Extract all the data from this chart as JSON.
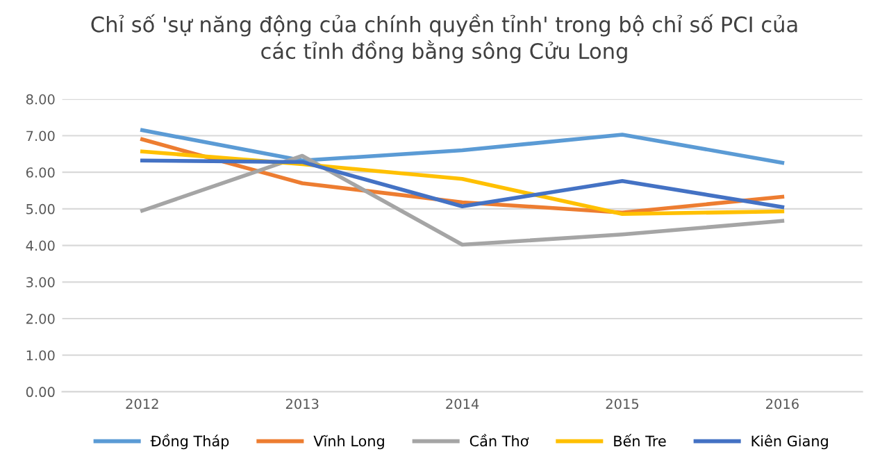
{
  "chart_data": {
    "type": "line",
    "title": "Chỉ số 'sự năng động của chính quyền tỉnh' trong bộ chỉ số PCI của\ncác tỉnh đồng bằng sông Cửu Long",
    "categories": [
      "2012",
      "2013",
      "2014",
      "2015",
      "2016"
    ],
    "series": [
      {
        "name": "Đồng Tháp",
        "color": "#5b9bd5",
        "values": [
          7.15,
          6.32,
          6.6,
          7.03,
          6.26
        ]
      },
      {
        "name": "Vĩnh Long",
        "color": "#ed7d31",
        "values": [
          6.9,
          5.7,
          5.18,
          4.9,
          5.33
        ]
      },
      {
        "name": "Cần Thơ",
        "color": "#a5a5a5",
        "values": [
          4.95,
          6.45,
          4.02,
          4.3,
          4.67
        ]
      },
      {
        "name": "Bến Tre",
        "color": "#ffc000",
        "values": [
          6.57,
          6.22,
          5.82,
          4.86,
          4.93
        ]
      },
      {
        "name": "Kiên Giang",
        "color": "#4472c4",
        "values": [
          6.32,
          6.28,
          5.07,
          5.76,
          5.05
        ]
      }
    ],
    "ylim": [
      0,
      8
    ],
    "yticks": [
      {
        "value": 0,
        "label": "0.00"
      },
      {
        "value": 1,
        "label": "1.00"
      },
      {
        "value": 2,
        "label": "2.00"
      },
      {
        "value": 3,
        "label": "3.00"
      },
      {
        "value": 4,
        "label": "4.00"
      },
      {
        "value": 5,
        "label": "5.00"
      },
      {
        "value": 6,
        "label": "6.00"
      },
      {
        "value": 7,
        "label": "7.00"
      },
      {
        "value": 8,
        "label": "8.00"
      }
    ],
    "grid": "y",
    "legend": "bottom",
    "marker": "none",
    "line_style": "solid"
  }
}
